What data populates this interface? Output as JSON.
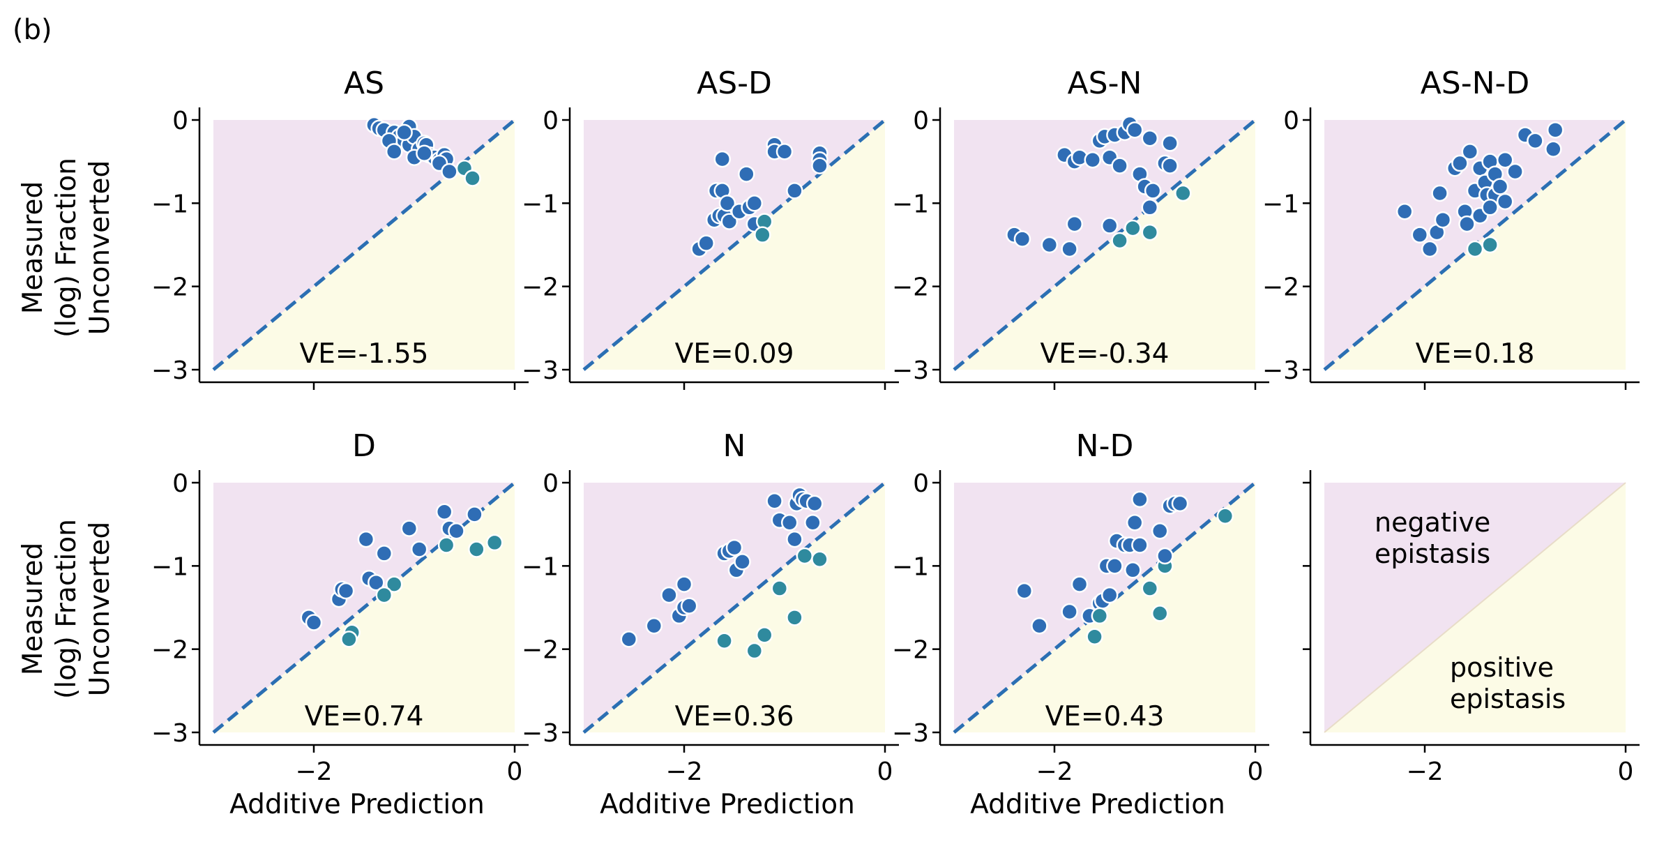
{
  "figure": {
    "panel_label": "(b)",
    "ylabel_lines": [
      "Measured",
      "(log) Fraction",
      "Unconverted"
    ],
    "xlabel": "Additive Prediction",
    "colors": {
      "negative_region": "#f1e3f1",
      "positive_region": "#fcfbe6",
      "diagonal": "#2b6fb3",
      "negative_point": "#2f6db5",
      "positive_point": "#2f8a9e",
      "point_edge": "#ffffff"
    },
    "legend": {
      "negative_lines": [
        "negative",
        "epistasis"
      ],
      "positive_lines": [
        "positive",
        "epistasis"
      ]
    }
  },
  "chart_data": [
    {
      "type": "scatter",
      "title": "AS",
      "annotation": "VE=-1.55",
      "xlim": [
        -3,
        0
      ],
      "ylim": [
        -3,
        0
      ],
      "xticks": [
        -2,
        0
      ],
      "xtick_labels": [
        "−2",
        "0"
      ],
      "yticks": [
        0,
        -1,
        -2,
        -3
      ],
      "ytick_labels": [
        "0",
        "−1",
        "−2",
        "−3"
      ],
      "points": [
        [
          -1.4,
          -0.06
        ],
        [
          -1.35,
          -0.1
        ],
        [
          -1.3,
          -0.12
        ],
        [
          -1.2,
          -0.15
        ],
        [
          -1.15,
          -0.2
        ],
        [
          -1.1,
          -0.25
        ],
        [
          -1.05,
          -0.08
        ],
        [
          -1.05,
          -0.3
        ],
        [
          -1.0,
          -0.2
        ],
        [
          -0.95,
          -0.35
        ],
        [
          -0.9,
          -0.28
        ],
        [
          -0.88,
          -0.3
        ],
        [
          -0.85,
          -0.42
        ],
        [
          -0.8,
          -0.45
        ],
        [
          -0.75,
          -0.48
        ],
        [
          -0.7,
          -0.42
        ],
        [
          -0.68,
          -0.47
        ],
        [
          -1.25,
          -0.25
        ],
        [
          -1.2,
          -0.38
        ],
        [
          -1.1,
          -0.15
        ],
        [
          -1.0,
          -0.45
        ],
        [
          -0.9,
          -0.4
        ],
        [
          -0.75,
          -0.52
        ],
        [
          -0.65,
          -0.62
        ],
        [
          -0.5,
          -0.58
        ],
        [
          -0.42,
          -0.7
        ]
      ]
    },
    {
      "type": "scatter",
      "title": "AS-D",
      "annotation": "VE=0.09",
      "xlim": [
        -3,
        0
      ],
      "ylim": [
        -3,
        0
      ],
      "xticks": [
        -2,
        0
      ],
      "xtick_labels": [
        "−2",
        "0"
      ],
      "yticks": [
        0,
        -1,
        -2,
        -3
      ],
      "ytick_labels": [
        "0",
        "−1",
        "−2",
        "−3"
      ],
      "points": [
        [
          -1.85,
          -1.55
        ],
        [
          -1.78,
          -1.48
        ],
        [
          -1.7,
          -1.2
        ],
        [
          -1.68,
          -0.85
        ],
        [
          -1.65,
          -1.15
        ],
        [
          -1.62,
          -0.85
        ],
        [
          -1.6,
          -1.15
        ],
        [
          -1.57,
          -1.0
        ],
        [
          -1.55,
          -1.22
        ],
        [
          -1.45,
          -1.1
        ],
        [
          -1.38,
          -0.65
        ],
        [
          -1.35,
          -1.05
        ],
        [
          -1.3,
          -1.0
        ],
        [
          -1.62,
          -0.47
        ],
        [
          -1.1,
          -0.3
        ],
        [
          -1.1,
          -0.38
        ],
        [
          -1.0,
          -0.38
        ],
        [
          -0.9,
          -0.85
        ],
        [
          -0.65,
          -0.4
        ],
        [
          -0.65,
          -0.48
        ],
        [
          -0.65,
          -0.55
        ],
        [
          -1.3,
          -1.25
        ],
        [
          -1.2,
          -1.22
        ],
        [
          -1.22,
          -1.38
        ]
      ]
    },
    {
      "type": "scatter",
      "title": "AS-N",
      "annotation": "VE=-0.34",
      "xlim": [
        -3,
        0
      ],
      "ylim": [
        -3,
        0
      ],
      "xticks": [
        -2,
        0
      ],
      "xtick_labels": [
        "−2",
        "0"
      ],
      "yticks": [
        0,
        -1,
        -2,
        -3
      ],
      "ytick_labels": [
        "0",
        "−1",
        "−2",
        "−3"
      ],
      "points": [
        [
          -2.4,
          -1.38
        ],
        [
          -2.32,
          -1.43
        ],
        [
          -2.05,
          -1.5
        ],
        [
          -1.85,
          -1.55
        ],
        [
          -1.8,
          -1.25
        ],
        [
          -1.45,
          -1.27
        ],
        [
          -1.9,
          -0.42
        ],
        [
          -1.8,
          -0.5
        ],
        [
          -1.75,
          -0.45
        ],
        [
          -1.62,
          -0.48
        ],
        [
          -1.55,
          -0.25
        ],
        [
          -1.5,
          -0.2
        ],
        [
          -1.45,
          -0.45
        ],
        [
          -1.4,
          -0.18
        ],
        [
          -1.35,
          -0.55
        ],
        [
          -1.3,
          -0.15
        ],
        [
          -1.25,
          -0.05
        ],
        [
          -1.2,
          -0.12
        ],
        [
          -1.15,
          -0.65
        ],
        [
          -1.1,
          -0.8
        ],
        [
          -1.05,
          -0.22
        ],
        [
          -1.02,
          -0.85
        ],
        [
          -0.9,
          -0.52
        ],
        [
          -0.85,
          -0.55
        ],
        [
          -0.85,
          -0.28
        ],
        [
          -1.35,
          -1.45
        ],
        [
          -1.22,
          -1.3
        ],
        [
          -1.05,
          -1.35
        ],
        [
          -1.05,
          -1.05
        ],
        [
          -0.72,
          -0.88
        ]
      ]
    },
    {
      "type": "scatter",
      "title": "AS-N-D",
      "annotation": "VE=0.18",
      "xlim": [
        -3,
        0
      ],
      "ylim": [
        -3,
        0
      ],
      "xticks": [
        -2,
        0
      ],
      "xtick_labels": [
        "−2",
        "0"
      ],
      "yticks": [
        0,
        -1,
        -2,
        -3
      ],
      "ytick_labels": [
        "0",
        "−1",
        "−2",
        "−3"
      ],
      "points": [
        [
          -2.2,
          -1.1
        ],
        [
          -2.05,
          -1.38
        ],
        [
          -1.95,
          -1.55
        ],
        [
          -1.88,
          -1.35
        ],
        [
          -1.85,
          -0.88
        ],
        [
          -1.82,
          -1.2
        ],
        [
          -1.7,
          -0.58
        ],
        [
          -1.65,
          -0.52
        ],
        [
          -1.6,
          -1.1
        ],
        [
          -1.58,
          -1.25
        ],
        [
          -1.55,
          -0.38
        ],
        [
          -1.5,
          -0.85
        ],
        [
          -1.45,
          -0.58
        ],
        [
          -1.45,
          -1.15
        ],
        [
          -1.4,
          -0.75
        ],
        [
          -1.38,
          -0.9
        ],
        [
          -1.35,
          -0.5
        ],
        [
          -1.3,
          -0.65
        ],
        [
          -1.3,
          -0.9
        ],
        [
          -1.25,
          -0.8
        ],
        [
          -1.2,
          -0.98
        ],
        [
          -1.35,
          -1.05
        ],
        [
          -1.2,
          -0.48
        ],
        [
          -1.1,
          -0.62
        ],
        [
          -1.0,
          -0.18
        ],
        [
          -0.9,
          -0.25
        ],
        [
          -0.72,
          -0.35
        ],
        [
          -0.7,
          -0.12
        ],
        [
          -1.5,
          -1.55
        ],
        [
          -1.35,
          -1.5
        ]
      ]
    },
    {
      "type": "scatter",
      "title": "D",
      "annotation": "VE=0.74",
      "xlim": [
        -3,
        0
      ],
      "ylim": [
        -3,
        0
      ],
      "xticks": [
        -2,
        0
      ],
      "xtick_labels": [
        "−2",
        "0"
      ],
      "yticks": [
        0,
        -1,
        -2,
        -3
      ],
      "ytick_labels": [
        "0",
        "−1",
        "−2",
        "−3"
      ],
      "points": [
        [
          -2.05,
          -1.62
        ],
        [
          -2.0,
          -1.68
        ],
        [
          -1.75,
          -1.4
        ],
        [
          -1.72,
          -1.28
        ],
        [
          -1.68,
          -1.3
        ],
        [
          -1.62,
          -1.8
        ],
        [
          -1.48,
          -0.68
        ],
        [
          -1.45,
          -1.15
        ],
        [
          -1.38,
          -1.2
        ],
        [
          -1.3,
          -0.85
        ],
        [
          -1.05,
          -0.55
        ],
        [
          -0.95,
          -0.8
        ],
        [
          -0.7,
          -0.35
        ],
        [
          -0.65,
          -0.55
        ],
        [
          -0.58,
          -0.58
        ],
        [
          -0.4,
          -0.38
        ],
        [
          -0.2,
          -0.72
        ],
        [
          -0.38,
          -0.8
        ],
        [
          -0.68,
          -0.75
        ],
        [
          -1.2,
          -1.22
        ],
        [
          -1.3,
          -1.35
        ],
        [
          -1.65,
          -1.88
        ]
      ]
    },
    {
      "type": "scatter",
      "title": "N",
      "annotation": "VE=0.36",
      "xlim": [
        -3,
        0
      ],
      "ylim": [
        -3,
        0
      ],
      "xticks": [
        -2,
        0
      ],
      "xtick_labels": [
        "−2",
        "0"
      ],
      "yticks": [
        0,
        -1,
        -2,
        -3
      ],
      "ytick_labels": [
        "0",
        "−1",
        "−2",
        "−3"
      ],
      "points": [
        [
          -2.55,
          -1.88
        ],
        [
          -2.3,
          -1.72
        ],
        [
          -2.15,
          -1.35
        ],
        [
          -2.05,
          -1.6
        ],
        [
          -2.0,
          -1.5
        ],
        [
          -2.0,
          -1.22
        ],
        [
          -1.95,
          -1.48
        ],
        [
          -1.6,
          -0.85
        ],
        [
          -1.55,
          -0.82
        ],
        [
          -1.5,
          -0.78
        ],
        [
          -1.48,
          -1.05
        ],
        [
          -1.42,
          -0.95
        ],
        [
          -1.1,
          -0.22
        ],
        [
          -1.05,
          -0.45
        ],
        [
          -0.95,
          -0.48
        ],
        [
          -0.9,
          -0.68
        ],
        [
          -0.88,
          -0.25
        ],
        [
          -0.85,
          -0.15
        ],
        [
          -0.82,
          -0.2
        ],
        [
          -0.78,
          -0.22
        ],
        [
          -0.7,
          -0.25
        ],
        [
          -0.72,
          -0.48
        ],
        [
          -1.6,
          -1.9
        ],
        [
          -1.3,
          -2.02
        ],
        [
          -1.2,
          -1.83
        ],
        [
          -1.05,
          -1.27
        ],
        [
          -0.9,
          -1.62
        ],
        [
          -0.8,
          -0.88
        ],
        [
          -0.65,
          -0.92
        ]
      ]
    },
    {
      "type": "scatter",
      "title": "N-D",
      "annotation": "VE=0.43",
      "xlim": [
        -3,
        0
      ],
      "ylim": [
        -3,
        0
      ],
      "xticks": [
        -2,
        0
      ],
      "xtick_labels": [
        "−2",
        "0"
      ],
      "yticks": [
        0,
        -1,
        -2,
        -3
      ],
      "ytick_labels": [
        "0",
        "−1",
        "−2",
        "−3"
      ],
      "points": [
        [
          -2.3,
          -1.3
        ],
        [
          -2.15,
          -1.72
        ],
        [
          -1.85,
          -1.55
        ],
        [
          -1.75,
          -1.22
        ],
        [
          -1.65,
          -1.6
        ],
        [
          -1.55,
          -1.45
        ],
        [
          -1.52,
          -1.42
        ],
        [
          -1.48,
          -1.0
        ],
        [
          -1.45,
          -1.35
        ],
        [
          -1.4,
          -1.0
        ],
        [
          -1.38,
          -0.7
        ],
        [
          -1.3,
          -0.75
        ],
        [
          -1.25,
          -0.75
        ],
        [
          -1.22,
          -1.05
        ],
        [
          -1.2,
          -0.48
        ],
        [
          -1.15,
          -0.2
        ],
        [
          -1.15,
          -0.75
        ],
        [
          -0.95,
          -0.58
        ],
        [
          -0.85,
          -0.28
        ],
        [
          -0.8,
          -0.25
        ],
        [
          -0.75,
          -0.25
        ],
        [
          -1.55,
          -1.6
        ],
        [
          -1.6,
          -1.85
        ],
        [
          -1.05,
          -1.27
        ],
        [
          -0.95,
          -1.57
        ],
        [
          -0.9,
          -1.0
        ],
        [
          -0.9,
          -0.88
        ],
        [
          -0.3,
          -0.4
        ]
      ]
    },
    {
      "type": "legend",
      "title": "",
      "xlim": [
        -3,
        0
      ],
      "ylim": [
        -3,
        0
      ],
      "xticks": [
        -2,
        0
      ],
      "xtick_labels": [
        "−2",
        "0"
      ],
      "yticks": [
        0,
        -1,
        -2,
        -3
      ],
      "ytick_labels": [],
      "points": []
    }
  ]
}
